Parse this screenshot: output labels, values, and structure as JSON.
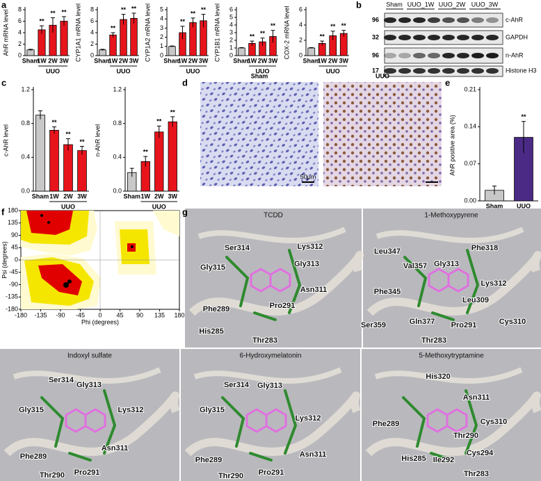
{
  "panel_labels": [
    "a",
    "b",
    "c",
    "d",
    "e",
    "f",
    "g"
  ],
  "chart_data": [
    {
      "type": "bar",
      "ylabel": "AhR mRNA level",
      "categories": [
        "Sham",
        "1W",
        "2W",
        "3W"
      ],
      "values": [
        1,
        4.5,
        5.3,
        6.0
      ],
      "errors": [
        0.1,
        0.7,
        1.3,
        0.8
      ],
      "colors": [
        "#c8c8c8",
        "#e8141c",
        "#e8141c",
        "#e8141c"
      ],
      "sig": [
        null,
        "**",
        "**",
        "**"
      ],
      "group_label": "UUO",
      "ylim": [
        0,
        8
      ],
      "yticks": [
        0,
        2,
        4,
        6,
        8
      ]
    },
    {
      "type": "bar",
      "ylabel": "CYP1A1 mRNA level",
      "categories": [
        "Sham",
        "1W",
        "2W",
        "3W"
      ],
      "values": [
        1,
        3.6,
        6.3,
        6.5
      ],
      "errors": [
        0.1,
        0.4,
        0.9,
        0.9
      ],
      "colors": [
        "#c8c8c8",
        "#e8141c",
        "#e8141c",
        "#e8141c"
      ],
      "sig": [
        null,
        "**",
        "**",
        "**"
      ],
      "group_label": "UUO",
      "ylim": [
        0,
        8
      ],
      "yticks": [
        0,
        2,
        4,
        6,
        8
      ]
    },
    {
      "type": "bar",
      "ylabel": "CYP1A2 mRNA level",
      "categories": [
        "Sham",
        "1W",
        "2W",
        "3W"
      ],
      "values": [
        1,
        2.5,
        3.6,
        3.8
      ],
      "errors": [
        0.05,
        0.7,
        0.5,
        0.7
      ],
      "colors": [
        "#c8c8c8",
        "#e8141c",
        "#e8141c",
        "#e8141c"
      ],
      "sig": [
        null,
        "**",
        "**",
        "**"
      ],
      "group_label": "UUO",
      "ylim": [
        0,
        5
      ],
      "yticks": [
        0,
        1,
        2,
        3,
        4,
        5
      ]
    },
    {
      "type": "bar",
      "ylabel": "CYP1B1 mRNA level",
      "categories": [
        "Sham",
        "1W",
        "2W",
        "3W"
      ],
      "values": [
        1,
        1.6,
        1.8,
        2.5
      ],
      "errors": [
        0.05,
        0.3,
        0.5,
        0.8
      ],
      "colors": [
        "#c8c8c8",
        "#e8141c",
        "#e8141c",
        "#e8141c"
      ],
      "sig": [
        null,
        "**",
        "**",
        "**"
      ],
      "group_label": "UUO",
      "ylim": [
        0,
        6
      ],
      "yticks": [
        0,
        1,
        2,
        3,
        4,
        5,
        6
      ]
    },
    {
      "type": "bar",
      "ylabel": "COX-2 mRNA level",
      "categories": [
        "Sham",
        "1W",
        "2W",
        "3W"
      ],
      "values": [
        1,
        1.6,
        2.6,
        2.9
      ],
      "errors": [
        0.05,
        0.3,
        0.6,
        0.4
      ],
      "colors": [
        "#c8c8c8",
        "#e8141c",
        "#e8141c",
        "#e8141c"
      ],
      "sig": [
        null,
        "**",
        "**",
        "**"
      ],
      "group_label": "UUO",
      "ylim": [
        0,
        6
      ],
      "yticks": [
        0,
        2,
        4,
        6
      ]
    },
    {
      "type": "bar",
      "ylabel": "c-AhR level",
      "categories": [
        "Sham",
        "1W",
        "2W",
        "3W"
      ],
      "values": [
        0.9,
        0.72,
        0.55,
        0.48
      ],
      "errors": [
        0.05,
        0.04,
        0.07,
        0.05
      ],
      "colors": [
        "#c8c8c8",
        "#e8141c",
        "#e8141c",
        "#e8141c"
      ],
      "sig": [
        null,
        "**",
        "**",
        "**"
      ],
      "group_label": "UUO",
      "ylim": [
        0,
        1.2
      ],
      "yticks": [
        {
          "value": 0,
          "label": "0.0"
        },
        0.4,
        0.8,
        1.2
      ]
    },
    {
      "type": "bar",
      "ylabel": "n-AhR level",
      "categories": [
        "Sham",
        "1W",
        "2W",
        "3W"
      ],
      "values": [
        0.22,
        0.35,
        0.7,
        0.82
      ],
      "errors": [
        0.05,
        0.06,
        0.07,
        0.06
      ],
      "colors": [
        "#c8c8c8",
        "#e8141c",
        "#e8141c",
        "#e8141c"
      ],
      "sig": [
        null,
        "**",
        "**",
        "**"
      ],
      "group_label": "UUO",
      "ylim": [
        0,
        1.2
      ],
      "yticks": [
        {
          "value": 0,
          "label": "0.0"
        },
        0.4,
        0.8,
        1.2
      ]
    },
    {
      "type": "bar",
      "ylabel": "AhR positive area (%)",
      "categories": [
        "Sham",
        "UUO"
      ],
      "values": [
        0.02,
        0.12
      ],
      "errors": [
        0.008,
        0.03
      ],
      "colors": [
        "#c8c8c8",
        "#4b2a86"
      ],
      "sig": [
        null,
        "**"
      ],
      "ylim": [
        0,
        0.21
      ],
      "yticks": [
        {
          "value": 0,
          "label": "0.00"
        },
        0.07,
        0.14,
        0.21
      ]
    },
    {
      "type": "ramachandran",
      "xlabel": "Phi (degrees)",
      "ylabel": "Psi (degrees)",
      "xlim": [
        -180,
        180
      ],
      "ylim": [
        -180,
        180
      ],
      "xticks": [
        -180,
        -135,
        -90,
        -45,
        0,
        45,
        90,
        135,
        180
      ],
      "yticks": [
        -180,
        -135,
        -90,
        -45,
        0,
        45,
        90,
        135,
        180
      ]
    }
  ],
  "blot": {
    "lanes": [
      "Sham",
      "UUO_1W",
      "UUO_2W",
      "UUO_3W"
    ],
    "rows": [
      {
        "mw": 96,
        "name": "c-AhR"
      },
      {
        "mw": 32,
        "name": "GAPDH"
      },
      {
        "mw": 96,
        "name": "n-AhR"
      },
      {
        "mw": 17,
        "name": "Histone H3"
      }
    ]
  },
  "histology": {
    "labels": [
      "Sham",
      "UUO"
    ],
    "scale": "50μm"
  },
  "docking": [
    {
      "title": "TCDD",
      "residues": [
        "Ser314",
        "Lys312",
        "Gly313",
        "Gly315",
        "Asn311",
        "Phe289",
        "Pro291",
        "His285",
        "Thr283"
      ]
    },
    {
      "title": "1-Methoxypyrene",
      "residues": [
        "Phe318",
        "Leu347",
        "Gly313",
        "Val357",
        "Lys312",
        "Phe345",
        "Leu309",
        "Ser359",
        "Gln377",
        "Pro291",
        "Cys310",
        "Thr283"
      ]
    },
    {
      "title": "Indoxyl sulfate",
      "residues": [
        "Ser314",
        "Gly313",
        "Lys312",
        "Gly315",
        "Phe289",
        "Asn311",
        "Thr290",
        "Pro291"
      ]
    },
    {
      "title": "6-Hydroxymelatonin",
      "residues": [
        "Ser314",
        "Gly313",
        "Lys312",
        "Gly315",
        "Asn311",
        "Phe289",
        "Pro291",
        "Thr290"
      ]
    },
    {
      "title": "5-Methoxytryptamine",
      "residues": [
        "His320",
        "Asn311",
        "Phe289",
        "Cys310",
        "Thr290",
        "Cys294",
        "His285",
        "Ile292",
        "Thr283"
      ]
    }
  ]
}
